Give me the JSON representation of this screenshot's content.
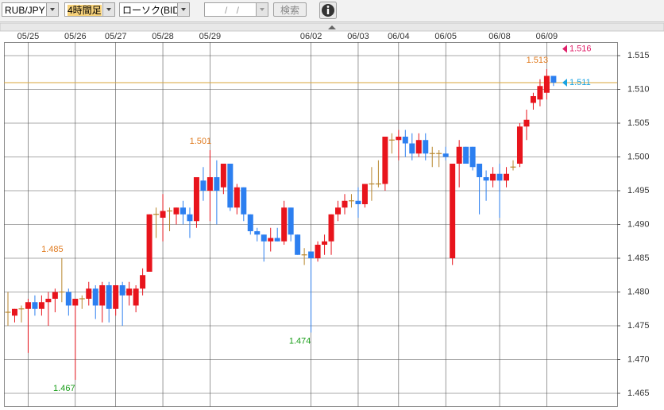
{
  "toolbar": {
    "symbol": "RUB/JPY",
    "timeframe": "4時間足",
    "chart_kind": "ローソク(BID)",
    "date_input": "/ /",
    "search_button": "検索"
  },
  "chart_data": {
    "type": "candlestick",
    "categories": [
      null,
      null,
      null,
      "05/25",
      null,
      null,
      null,
      null,
      null,
      null,
      "05/26",
      null,
      null,
      null,
      null,
      null,
      "05/27",
      null,
      null,
      null,
      null,
      null,
      null,
      "05/28",
      null,
      null,
      null,
      null,
      null,
      null,
      "05/29",
      null,
      null,
      null,
      null,
      null,
      null,
      null,
      null,
      null,
      null,
      null,
      null,
      null,
      null,
      "06/02",
      null,
      null,
      null,
      null,
      null,
      null,
      "06/03",
      null,
      null,
      null,
      null,
      null,
      "06/04",
      null,
      null,
      null,
      null,
      null,
      null,
      "06/05",
      null,
      null,
      null,
      null,
      null,
      null,
      null,
      "06/08",
      null,
      null,
      null,
      null,
      null,
      null,
      "06/09",
      null
    ],
    "open": [
      1.477,
      1.4765,
      1.4775,
      1.4775,
      1.4785,
      1.4775,
      1.4785,
      1.479,
      1.48,
      1.48,
      1.478,
      1.479,
      1.479,
      1.4805,
      1.478,
      1.481,
      1.4775,
      1.481,
      1.4795,
      1.478,
      1.4805,
      1.483,
      1.4915,
      1.491,
      1.492,
      1.4915,
      1.4925,
      1.4915,
      1.4905,
      1.4965,
      1.495,
      1.497,
      1.4955,
      1.499,
      1.4925,
      1.4955,
      1.4915,
      1.489,
      1.4885,
      1.4875,
      1.488,
      1.4875,
      1.4925,
      1.4885,
      1.4855,
      1.486,
      1.485,
      1.487,
      1.4875,
      1.4915,
      1.4925,
      1.4935,
      1.4935,
      1.493,
      1.496,
      1.496,
      1.496,
      1.5025,
      1.5025,
      1.503,
      1.502,
      1.5005,
      1.5025,
      1.5005,
      1.5005,
      1.5005,
      1.485,
      1.499,
      1.5015,
      1.5015,
      1.499,
      1.497,
      1.4965,
      1.4975,
      1.4965,
      1.4985,
      1.499,
      1.5045,
      1.508,
      1.5085,
      1.5095,
      1.512
    ],
    "high": [
      1.48,
      1.4775,
      1.478,
      1.479,
      1.4795,
      1.4795,
      1.48,
      1.4805,
      1.485,
      1.4805,
      1.479,
      1.4795,
      1.4815,
      1.481,
      1.4815,
      1.4815,
      1.481,
      1.4815,
      1.4815,
      1.481,
      1.4835,
      1.4915,
      1.4925,
      1.4945,
      1.4925,
      1.4925,
      1.4935,
      1.4925,
      1.497,
      1.4985,
      1.501,
      1.4995,
      1.499,
      1.499,
      1.496,
      1.4955,
      1.4915,
      1.4895,
      1.4885,
      1.4895,
      1.4895,
      1.4935,
      1.4925,
      1.4885,
      1.4865,
      1.486,
      1.4875,
      1.4885,
      1.4915,
      1.4935,
      1.4945,
      1.4945,
      1.4955,
      1.496,
      1.4985,
      1.4995,
      1.503,
      1.5035,
      1.504,
      1.504,
      1.5035,
      1.5035,
      1.5035,
      1.5015,
      1.501,
      1.5015,
      1.499,
      1.5025,
      1.5015,
      1.5015,
      1.499,
      1.498,
      1.4985,
      1.499,
      1.4985,
      1.4995,
      1.505,
      1.507,
      1.5095,
      1.5115,
      1.513,
      1.512
    ],
    "low": [
      1.475,
      1.4755,
      1.4755,
      1.471,
      1.4765,
      1.4765,
      1.475,
      1.477,
      1.4785,
      1.4765,
      1.467,
      1.4775,
      1.478,
      1.476,
      1.4755,
      1.4755,
      1.4765,
      1.475,
      1.478,
      1.477,
      1.4795,
      1.483,
      1.488,
      1.4875,
      1.489,
      1.49,
      1.49,
      1.488,
      1.4895,
      1.4935,
      1.4905,
      1.49,
      1.4945,
      1.492,
      1.4915,
      1.4905,
      1.4885,
      1.4875,
      1.4845,
      1.486,
      1.4875,
      1.487,
      1.4875,
      1.4855,
      1.484,
      1.474,
      1.4845,
      1.4855,
      1.4855,
      1.4905,
      1.4915,
      1.4925,
      1.491,
      1.4925,
      1.4935,
      1.4955,
      1.495,
      1.5005,
      1.4995,
      1.5,
      1.4995,
      1.5,
      1.4995,
      1.4985,
      1.4985,
      1.4995,
      1.484,
      1.4955,
      1.499,
      1.498,
      1.4915,
      1.4935,
      1.4955,
      1.491,
      1.4955,
      1.498,
      1.4985,
      1.5025,
      1.507,
      1.5075,
      1.5085,
      1.5105
    ],
    "close": [
      1.477,
      1.4775,
      1.4775,
      1.4785,
      1.4775,
      1.4785,
      1.479,
      1.48,
      1.48,
      1.478,
      1.479,
      1.479,
      1.4805,
      1.478,
      1.481,
      1.4775,
      1.481,
      1.4795,
      1.4805,
      1.4805,
      1.4825,
      1.4915,
      1.4915,
      1.492,
      1.492,
      1.4925,
      1.4915,
      1.4905,
      1.497,
      1.495,
      1.497,
      1.495,
      1.499,
      1.4925,
      1.4955,
      1.4915,
      1.489,
      1.4885,
      1.4875,
      1.488,
      1.4875,
      1.4925,
      1.4885,
      1.4855,
      1.4855,
      1.485,
      1.487,
      1.4875,
      1.4915,
      1.4925,
      1.4935,
      1.4935,
      1.493,
      1.496,
      1.496,
      1.496,
      1.503,
      1.5025,
      1.503,
      1.502,
      1.5005,
      1.5025,
      1.5005,
      1.5005,
      1.5005,
      1.5,
      1.499,
      1.5015,
      1.499,
      1.4985,
      1.497,
      1.4965,
      1.4975,
      1.4965,
      1.4975,
      1.4985,
      1.5045,
      1.5055,
      1.509,
      1.5105,
      1.512,
      1.511
    ],
    "up_color": "#e8141c",
    "down_color": "#2c7ff0",
    "doji_color": "#b8862c",
    "ylim": [
      1.463,
      1.517
    ],
    "yticks": [
      1.465,
      {
        "value": 1.47,
        "label": "1.470"
      },
      1.475,
      {
        "value": 1.48,
        "label": "1.480"
      },
      1.485,
      {
        "value": 1.49,
        "label": "1.490"
      },
      1.495,
      {
        "value": 1.5,
        "label": "1.500"
      },
      1.505,
      {
        "value": 1.51,
        "label": "1.510"
      },
      1.515
    ],
    "grid": true,
    "high_labels": [
      1.485,
      1.501,
      1.513
    ],
    "high_label_color": "#e07b20",
    "low_labels": [
      1.467,
      1.474
    ],
    "low_label_color": "#1a9e1a",
    "current_price": 1.511,
    "current_price_color": "#1aa3e0",
    "current_line_color": "#d9a53a",
    "high_marker": 1.516,
    "high_marker_color": "#e0206a"
  }
}
